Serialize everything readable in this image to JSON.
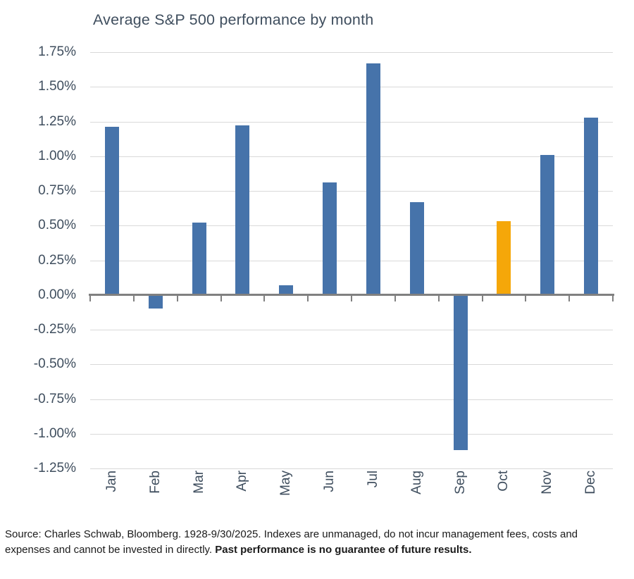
{
  "title": "Average S&P 500 performance by month",
  "chart_data": {
    "type": "bar",
    "title": "Average S&P 500 performance by month",
    "categories": [
      "Jan",
      "Feb",
      "Mar",
      "Apr",
      "May",
      "Jun",
      "Jul",
      "Aug",
      "Sep",
      "Oct",
      "Nov",
      "Dec"
    ],
    "values": [
      1.21,
      -0.1,
      0.52,
      1.22,
      0.07,
      0.81,
      1.67,
      0.67,
      -1.12,
      0.53,
      1.01,
      1.28
    ],
    "unit": "%",
    "ylim": [
      -1.25,
      1.75
    ],
    "ytick_step": 0.25,
    "ytick_labels": [
      "1.75%",
      "1.50%",
      "1.25%",
      "1.00%",
      "0.75%",
      "0.50%",
      "0.25%",
      "0.00%",
      "-0.25%",
      "-0.50%",
      "-0.75%",
      "-1.00%",
      "-1.25%"
    ],
    "grid": true,
    "legend": "none",
    "xlabel": "",
    "ylabel": "",
    "bar_color": "#4673aa",
    "highlight_color": "#f5a709",
    "highlight_category": "Oct",
    "axis_color": "#808080",
    "gridline_color": "#d9d9d9",
    "label_color": "#3f4e5e"
  },
  "footer": {
    "source_text": "Source: Charles Schwab, Bloomberg. 1928-9/30/2025. Indexes are unmanaged, do not incur management fees, costs and expenses and cannot be invested in directly. ",
    "bold_text": "Past performance is no guarantee of future results."
  }
}
